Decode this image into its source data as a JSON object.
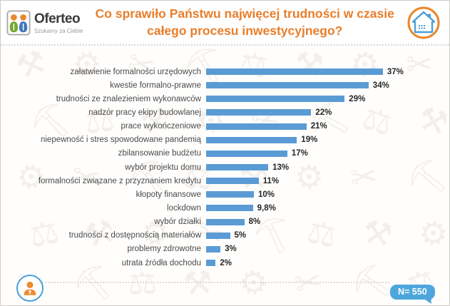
{
  "header": {
    "logo": {
      "brand": "Oferteo",
      "tagline": "Szukamy za Ciebie"
    },
    "title_line1": "Co sprawiło Państwu najwięcej trudności w czasie",
    "title_line2": "całego procesu inwestycyjnego?"
  },
  "chart_data": {
    "type": "bar",
    "orientation": "horizontal",
    "title": "Co sprawiło Państwu najwięcej trudności w czasie całego procesu inwestycyjnego?",
    "categories": [
      "załatwienie formalności urzędowych",
      "kwestie formalno-prawne",
      "trudności ze znalezieniem wykonawców",
      "nadzór pracy ekipy budowlanej",
      "prace wykończeniowe",
      "niepewność i stres spowodowane pandemią",
      "zbilansowanie budżetu",
      "wybór projektu domu",
      "formalności związane z przyznaniem kredytu",
      "kłopoty finansowe",
      "lockdown",
      "wybór działki",
      "trudności z dostępnością materiałów",
      "problemy zdrowotne",
      "utrata źródła dochodu"
    ],
    "values": [
      37,
      34,
      29,
      22,
      21,
      19,
      17,
      13,
      11,
      10,
      9.8,
      8,
      5,
      3,
      2
    ],
    "value_labels": [
      "37%",
      "34%",
      "29%",
      "22%",
      "21%",
      "19%",
      "17%",
      "13%",
      "11%",
      "10%",
      "9,8%",
      "8%",
      "5%",
      "3%",
      "2%"
    ],
    "xlim": [
      0,
      40
    ],
    "grid": false,
    "legend": "none",
    "value_label_position": "end",
    "bar_color": "#5B9BD5"
  },
  "footer": {
    "sample_size_label": "N= 550"
  },
  "colors": {
    "accent_orange": "#E87E2B",
    "bar_blue": "#5B9BD5",
    "badge_blue": "#4DA6DC",
    "avatar_ring_blue": "#4A9FD8",
    "brand_text": "#3A3A3A",
    "tagline_gray": "#9B9B9B",
    "label_gray": "#4A4A4A"
  },
  "icons": {
    "logo": "oferteo-two-people-icon",
    "header_right": "house-icon",
    "footer_left": "person-icon",
    "watermarks": [
      "hammer-icon",
      "gear-icon",
      "scissors-icon",
      "pickaxe-icon",
      "scales-icon"
    ]
  },
  "decor": {
    "watermark_glyphs": [
      "⚒",
      "⚙",
      "✂",
      "⛏",
      "⚖"
    ]
  }
}
